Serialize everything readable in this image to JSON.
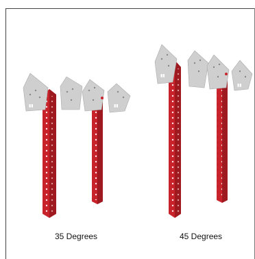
{
  "captions": {
    "left": "35 Degrees",
    "right": "45 Degrees"
  },
  "colors": {
    "beam": "#c8232b",
    "beam_dark": "#9e1a20",
    "beam_light": "#e0353c",
    "plate": "#cfcfcf",
    "plate_dark": "#b8b8b8",
    "frame": "#444444"
  }
}
